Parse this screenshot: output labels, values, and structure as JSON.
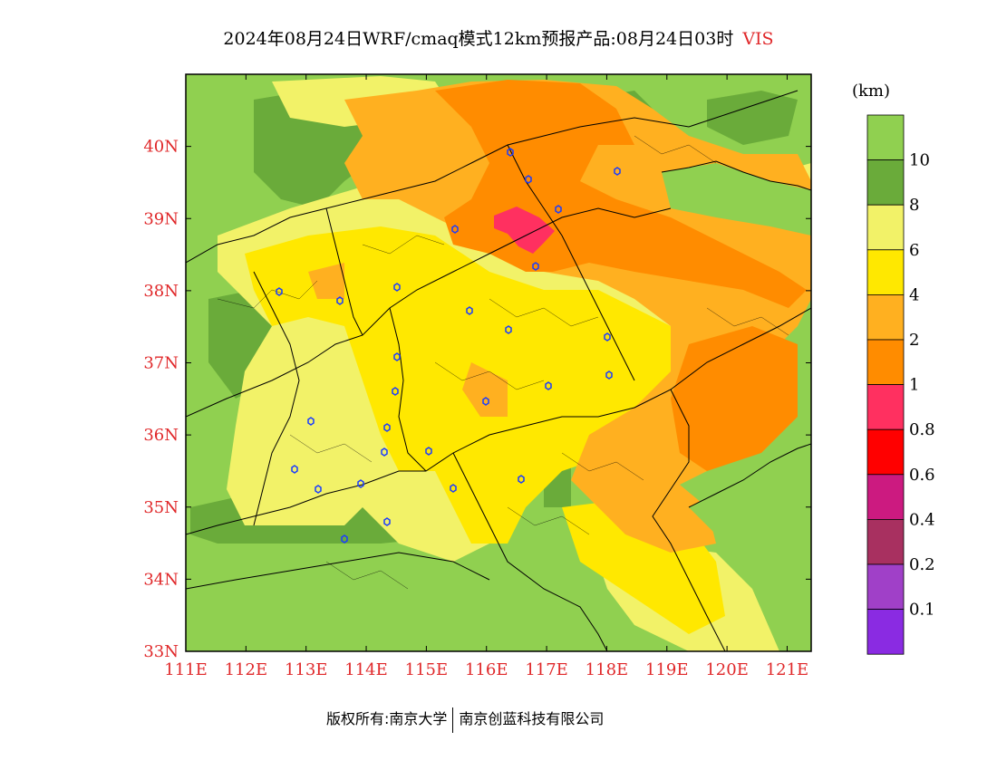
{
  "title": {
    "main": "2024年08月24日WRF/cmaq模式12km预报产品:08月24日03时",
    "variable": "VIS"
  },
  "map": {
    "lon_labels": [
      "111E",
      "112E",
      "113E",
      "114E",
      "115E",
      "116E",
      "117E",
      "118E",
      "119E",
      "120E",
      "121E"
    ],
    "lat_labels": [
      "40N",
      "39N",
      "38N",
      "37N",
      "36N",
      "35N",
      "34N",
      "33N"
    ],
    "lon_range": [
      111,
      121.4
    ],
    "lat_range": [
      33,
      41
    ],
    "axis_label_color": "#e0282a",
    "station_icon": "station-marker-icon"
  },
  "legend": {
    "unit": "(km)",
    "labels": [
      "10",
      "8",
      "6",
      "4",
      "2",
      "1",
      "0.8",
      "0.6",
      "0.4",
      "0.2",
      "0.1"
    ],
    "colors": [
      "#90d050",
      "#6aab3a",
      "#f2f268",
      "#ffe800",
      "#ffb020",
      "#ff8c00",
      "#ff3060",
      "#ff0000",
      "#cc1a80",
      "#a83060",
      "#a040c8",
      "#8a2be2"
    ]
  },
  "footer": {
    "left": "版权所有:南京大学",
    "right": "南京创蓝科技有限公司"
  }
}
